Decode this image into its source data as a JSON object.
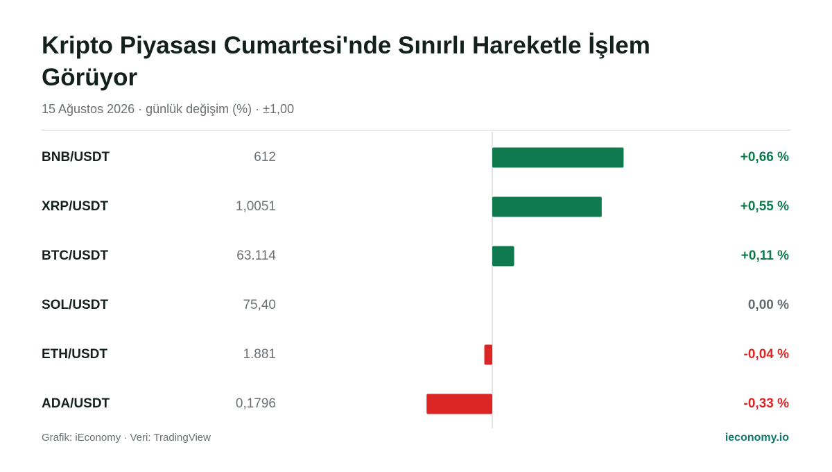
{
  "chart_data": {
    "type": "bar",
    "orientation": "horizontal",
    "title": "Kripto Piyasası Cumartesi'nde Sınırlı Hareketle İşlem Görüyor",
    "subtitle": "15 Ağustos 2026 · günlük değişim (%) · ±1,00",
    "categories": [
      "BNB/USDT",
      "XRP/USDT",
      "BTC/USDT",
      "SOL/USDT",
      "ETH/USDT",
      "ADA/USDT"
    ],
    "prices": [
      "612",
      "1,0051",
      "63.114",
      "75,40",
      "1.881",
      "0,1796"
    ],
    "values": [
      0.66,
      0.55,
      0.11,
      0,
      -0.04,
      -0.33
    ],
    "value_labels": [
      "+0,66 %",
      "+0,55 %",
      "+0,11 %",
      "0,00 %",
      "-0,04 %",
      "-0,33 %"
    ],
    "xlim": [
      -1,
      1
    ],
    "positive_color": "#0e7a4e",
    "negative_color": "#dc2626",
    "neutral_color": "#666b6e",
    "source": "Grafik: iEconomy · Veri: TradingView",
    "brand": "ieconomy.io"
  }
}
